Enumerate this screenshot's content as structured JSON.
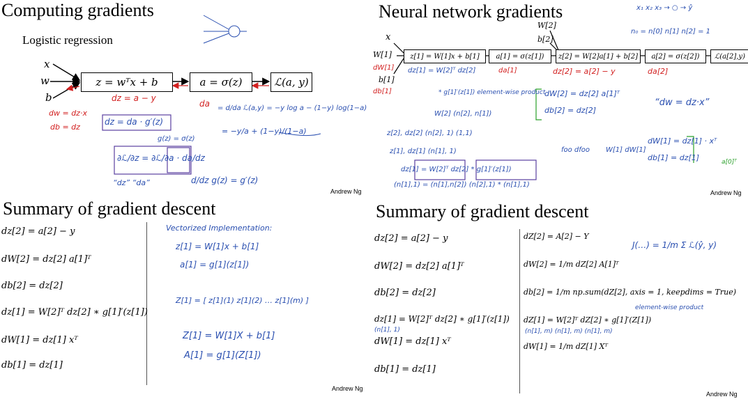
{
  "slides": {
    "computing": {
      "title": "Computing gradients",
      "subtitle": "Logistic regression",
      "inputs": [
        "x",
        "w",
        "b"
      ],
      "boxes": [
        "z = wᵀx + b",
        "a = σ(z)",
        "ℒ(a, y)"
      ],
      "handwriting": {
        "dz": "dz = a − y",
        "da_label": "da",
        "da_expr": "= d/da ℒ(a,y) = −y log a − (1−y) log(1−a)",
        "da_result": "= −y/a + (1−y)/(1−a)",
        "dw": "dw = dz·x",
        "db": "db = dz",
        "dz_chain": "dz = da · g′(z)",
        "g_def": "g(z) = σ(z)",
        "partial": "∂ℒ/∂z = ∂ℒ/∂a · da/dz",
        "dz_da": "“dz”  “da”",
        "g_deriv": "d/dz g(z) = g′(z)"
      },
      "credit": "Andrew Ng"
    },
    "neural": {
      "title": "Neural network gradients",
      "inputs": [
        "x",
        "W[1]",
        "b[1]",
        "W[2]",
        "b[2]"
      ],
      "boxes": [
        "z[1] = W[1]x + b[1]",
        "a[1] = σ(z[1])",
        "z[2] = W[2]a[1] + b[2]",
        "a[2] = σ(z[2])",
        "ℒ(a[2],y)"
      ],
      "handwriting": {
        "top_right": "x₁ x₂ x₃ → ○ → ŷ",
        "sizes": "n₀ = n[0]   n[1]   n[2] = 1",
        "dW1": "dW[1]",
        "db1": "db[1]",
        "dz1": "dz[1] = W[2]ᵀ dz[2]",
        "da1": "da[1]",
        "dz2": "dz[2] = a[2] − y",
        "da2": "da[2]",
        "dW2": "dW[2] = dz[2] a[1]ᵀ",
        "db2": "db[2] = dz[2]",
        "dw_dz": "“dw = dz·x”",
        "elem": "* g[1]′(z[1])  element-wise product",
        "w2dims": "W[2]  (n[2], n[1])",
        "z2dims": "z[2], dz[2]  (n[2], 1)  (1,1)",
        "z1dims": "z[1], dz[1]  (n[1], 1)",
        "foo": "foo  dfoo",
        "w1": "W[1]  dW[1]",
        "dW1r": "dW[1] = dz[1] · xᵀ",
        "db1r": "db[1] = dz[1]",
        "a0": "a[0]ᵀ",
        "dz1full": "dz[1] = W[2]ᵀ dz[2] * g[1]′(z[1])",
        "dims_bottom": "(n[1],1) = (n[1],n[2]) (n[2],1) * (n[1],1)"
      },
      "credit": "Andrew Ng"
    },
    "summary1": {
      "title": "Summary of gradient descent",
      "equations": [
        "dz[2] = a[2] − y",
        "dW[2] = dz[2] a[1]ᵀ",
        "db[2] = dz[2]",
        "dz[1] = W[2]ᵀ dz[2] ∗ g[1]′(z[1])",
        "dW[1] = dz[1] xᵀ",
        "db[1] = dz[1]"
      ],
      "handwriting": {
        "heading": "Vectorized Implementation:",
        "z1": "z[1] = W[1]x + b[1]",
        "a1": "a[1] = g[1](z[1])",
        "Z1": "Z[1] = [ z[1](1)  z[1](2)  …  z[1](m) ]",
        "Z1v": "Z[1] = W[1]X + b[1]",
        "A1v": "A[1] = g[1](Z[1])"
      },
      "credit": "Andrew Ng"
    },
    "summary2": {
      "title": "Summary of gradient descent",
      "left_equations": [
        "dz[2] = a[2] − y",
        "dW[2] = dz[2] a[1]ᵀ",
        "db[2] = dz[2]",
        "dz[1] = W[2]ᵀ dz[2] ∗ g[1]′(z[1])",
        "dW[1] = dz[1] xᵀ",
        "db[1] = dz[1]"
      ],
      "right_equations": [
        "dZ[2] = A[2] − Y",
        "dW[2] = 1/m dZ[2] A[1]ᵀ",
        "db[2] = 1/m np.sum(dZ[2], axis = 1, keepdims = True)",
        "dZ[1] = W[2]ᵀ dZ[2] ∗ g[1]′(Z[1])",
        "dW[1] = 1/m dZ[1] Xᵀ"
      ],
      "handwriting": {
        "cost": "J(…) = 1/m Σ ℒ(ŷ, y)",
        "elem": "element-wise product",
        "dims_left": "(n[1], 1)",
        "dims_right": "(n[1], m)   (n[1], m)   (n[1], m)"
      },
      "credit": "Andrew Ng"
    }
  }
}
